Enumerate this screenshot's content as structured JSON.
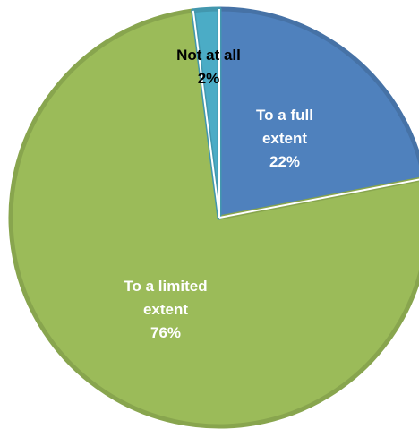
{
  "chart_data": {
    "type": "pie",
    "slices": [
      {
        "label_lines": [
          "To a full",
          "extent"
        ],
        "value": 22,
        "value_label": "22%",
        "color": "#4F81BD",
        "label_color": "#ffffff"
      },
      {
        "label_lines": [
          "To a limited",
          "extent"
        ],
        "value": 76,
        "value_label": "76%",
        "color": "#9BBB59",
        "label_color": "#ffffff"
      },
      {
        "label_lines": [
          "Not at all"
        ],
        "value": 2,
        "value_label": "2%",
        "color": "#4BACC6",
        "label_color": "#000000"
      }
    ],
    "start_angle_deg": 0,
    "direction": "clockwise"
  }
}
